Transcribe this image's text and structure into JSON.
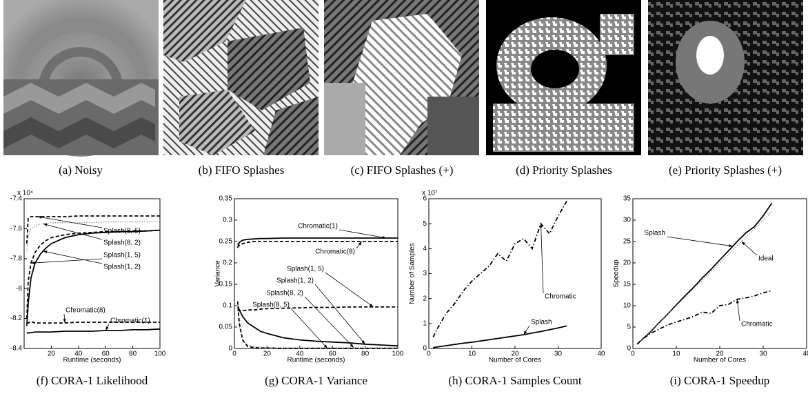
{
  "panels": [
    {
      "caption": "(a) Noisy"
    },
    {
      "caption": "(b) FIFO Splashes"
    },
    {
      "caption": "(c) FIFO Splashes (+)"
    },
    {
      "caption": "(d) Priority Splashes"
    },
    {
      "caption": "(e) Priority Splashes (+)"
    }
  ],
  "chart_data": [
    {
      "type": "line",
      "caption": "(f) CORA-1 Likelihood",
      "xlabel": "Runtime (seconds)",
      "y_multiplier": "x 10⁴",
      "x": [
        2,
        3,
        5,
        8,
        12,
        16,
        20,
        30,
        40,
        50,
        60,
        70,
        80,
        90,
        100
      ],
      "xlim": [
        0,
        100
      ],
      "xticks": [
        20,
        40,
        60,
        80,
        100
      ],
      "ylim": [
        -84000,
        -74000
      ],
      "yticks": [
        {
          "value": -84000,
          "label": "-8.4"
        },
        {
          "value": -82000,
          "label": "-8.2"
        },
        {
          "value": -80000,
          "label": "-8"
        },
        {
          "value": -78000,
          "label": "-7.8"
        },
        {
          "value": -76000,
          "label": "-7.6"
        },
        {
          "value": -74000,
          "label": "-7.4"
        }
      ],
      "series": [
        {
          "name": "Splash(8, 5)",
          "color": "#000000",
          "style": "dashed",
          "values": [
            -77000,
            -75300,
            -75200,
            -75200,
            -75200,
            -75200,
            -75200,
            -75200,
            -75150,
            -75150,
            -75150,
            -75150,
            -75150,
            -75150,
            -75150
          ]
        },
        {
          "name": "Splash(8, 2)",
          "color": "#888888",
          "style": "dotted",
          "values": [
            -77500,
            -76500,
            -76000,
            -75800,
            -75700,
            -75650,
            -75600,
            -75600,
            -75600,
            -75600,
            -75550,
            -75550,
            -75550,
            -75550,
            -75550
          ]
        },
        {
          "name": "Splash(1, 5)",
          "color": "#000000",
          "style": "dashed",
          "values": [
            -82000,
            -79500,
            -78300,
            -77600,
            -77100,
            -76800,
            -76600,
            -76400,
            -76300,
            -76250,
            -76200,
            -76200,
            -76150,
            -76150,
            -76100
          ]
        },
        {
          "name": "Splash(1, 2)",
          "color": "#000000",
          "style": "solid",
          "values": [
            -82500,
            -81000,
            -79300,
            -78300,
            -77700,
            -77300,
            -77000,
            -76600,
            -76400,
            -76300,
            -76250,
            -76200,
            -76200,
            -76150,
            -76100
          ]
        },
        {
          "name": "Chromatic(8)",
          "color": "#000000",
          "style": "dashed",
          "values": [
            -82300,
            -82300,
            -82200,
            -82300,
            -82300,
            -82300,
            -82300,
            -82300,
            -82250,
            -82250,
            -82250,
            -82250,
            -82250,
            -82250,
            -82250
          ]
        },
        {
          "name": "Chromatic(1)",
          "color": "#000000",
          "style": "solid",
          "values": [
            -83000,
            -82950,
            -82950,
            -82900,
            -82900,
            -82900,
            -82900,
            -82850,
            -82850,
            -82850,
            -82800,
            -82800,
            -82750,
            -82750,
            -82700
          ]
        }
      ]
    },
    {
      "type": "line",
      "caption": "(g) CORA-1 Variance",
      "xlabel": "Runtime (seconds)",
      "ylabel": "Variance",
      "x": [
        2,
        3,
        5,
        8,
        12,
        16,
        20,
        30,
        40,
        50,
        60,
        70,
        80,
        90,
        100
      ],
      "xlim": [
        0,
        100
      ],
      "xticks": [
        0,
        20,
        40,
        60,
        80,
        100
      ],
      "ylim": [
        0,
        0.35
      ],
      "yticks": [
        0,
        0.05,
        0.1,
        0.15,
        0.2,
        0.25,
        0.3,
        0.35
      ],
      "series": [
        {
          "name": "Chromatic(1)",
          "color": "#000000",
          "style": "solid",
          "values": [
            0.235,
            0.248,
            0.253,
            0.255,
            0.256,
            0.257,
            0.257,
            0.258,
            0.258,
            0.258,
            0.258,
            0.258,
            0.258,
            0.258,
            0.258
          ]
        },
        {
          "name": "Chromatic(8)",
          "color": "#000000",
          "style": "dashed",
          "values": [
            0.245,
            0.24,
            0.245,
            0.248,
            0.25,
            0.25,
            0.25,
            0.25,
            0.25,
            0.25,
            0.25,
            0.25,
            0.25,
            0.25,
            0.25
          ]
        },
        {
          "name": "Splash(1, 5)",
          "color": "#000000",
          "style": "dashed",
          "values": [
            0.09,
            0.088,
            0.088,
            0.09,
            0.09,
            0.092,
            0.093,
            0.094,
            0.095,
            0.096,
            0.096,
            0.097,
            0.097,
            0.097,
            0.097
          ]
        },
        {
          "name": "Splash(1, 2)",
          "color": "#000000",
          "style": "solid",
          "values": [
            0.1,
            0.09,
            0.075,
            0.06,
            0.05,
            0.04,
            0.035,
            0.025,
            0.02,
            0.017,
            0.015,
            0.013,
            0.01,
            0.008,
            0.006
          ]
        },
        {
          "name": "Splash(8, 2)",
          "color": "#888888",
          "style": "dotted",
          "values": [
            0.1,
            0.05,
            0.02,
            0.008,
            0.004,
            0.003,
            0.002,
            0.002,
            0.002,
            0.002,
            0.002,
            0.002,
            0.002,
            0.002,
            0.002
          ]
        },
        {
          "name": "Splash(8, 5)",
          "color": "#000000",
          "style": "dashed",
          "values": [
            0.11,
            0.06,
            0.02,
            0.005,
            0.002,
            0.001,
            0.001,
            0,
            0,
            0,
            0,
            0,
            0,
            0,
            0
          ]
        }
      ]
    },
    {
      "type": "line",
      "caption": "(h) CORA-1 Samples Count",
      "xlabel": "Number of Cores",
      "ylabel": "Number of Samples",
      "y_multiplier": "x 10⁷",
      "x": [
        1,
        2,
        4,
        6,
        8,
        10,
        12,
        14,
        16,
        18,
        20,
        22,
        24,
        26,
        28,
        30,
        32
      ],
      "xlim": [
        0,
        40
      ],
      "xticks": [
        0,
        10,
        20,
        30,
        40
      ],
      "ylim": [
        0,
        60000000
      ],
      "yticks": [
        0,
        {
          "value": 10000000,
          "label": "1"
        },
        {
          "value": 20000000,
          "label": "2"
        },
        {
          "value": 30000000,
          "label": "3"
        },
        {
          "value": 40000000,
          "label": "4"
        },
        {
          "value": 50000000,
          "label": "5"
        },
        {
          "value": 60000000,
          "label": "6"
        }
      ],
      "series": [
        {
          "name": "Chromatic",
          "color": "#000000",
          "style": "dashdot",
          "values": [
            4500000,
            8000000,
            14000000,
            18000000,
            23000000,
            27000000,
            30000000,
            33000000,
            38000000,
            35000000,
            42000000,
            44000000,
            40000000,
            50000000,
            46000000,
            53000000,
            59000000
          ]
        },
        {
          "name": "Splash",
          "color": "#000000",
          "style": "solid",
          "values": [
            300000,
            600000,
            1100000,
            1600000,
            2100000,
            2500000,
            3000000,
            3500000,
            4000000,
            4500000,
            5000000,
            5500000,
            6200000,
            6800000,
            7500000,
            8200000,
            9000000
          ]
        }
      ]
    },
    {
      "type": "line",
      "caption": "(i) CORA-1 Speedup",
      "xlabel": "Number of Cores",
      "ylabel": "Speedup",
      "x": [
        1,
        2,
        4,
        6,
        8,
        10,
        12,
        14,
        16,
        18,
        20,
        22,
        24,
        26,
        28,
        30,
        32
      ],
      "xlim": [
        0,
        40
      ],
      "xticks": [
        0,
        10,
        20,
        30,
        40
      ],
      "ylim": [
        0,
        35
      ],
      "yticks": [
        0,
        5,
        10,
        15,
        20,
        25,
        30,
        35
      ],
      "series": [
        {
          "name": "Splash",
          "color": "#000000",
          "style": "solid",
          "values": [
            1,
            2,
            3.8,
            6,
            8,
            10.2,
            12.3,
            14.3,
            16.5,
            18.5,
            20.7,
            22.8,
            25,
            27,
            28.5,
            31,
            34
          ]
        },
        {
          "name": "Ideal",
          "color": "#888888",
          "style": "dotted",
          "values": [
            1,
            2,
            4,
            6,
            8,
            10,
            12,
            14,
            16,
            18,
            20,
            22,
            24,
            26,
            28,
            30,
            32
          ]
        },
        {
          "name": "Chromatic",
          "color": "#000000",
          "style": "dashdot",
          "values": [
            1,
            2,
            3.5,
            4.5,
            5.5,
            6.2,
            6.8,
            7.5,
            8.5,
            8.2,
            10,
            10.3,
            11.5,
            11.8,
            12.3,
            13,
            13.5
          ]
        }
      ]
    }
  ]
}
